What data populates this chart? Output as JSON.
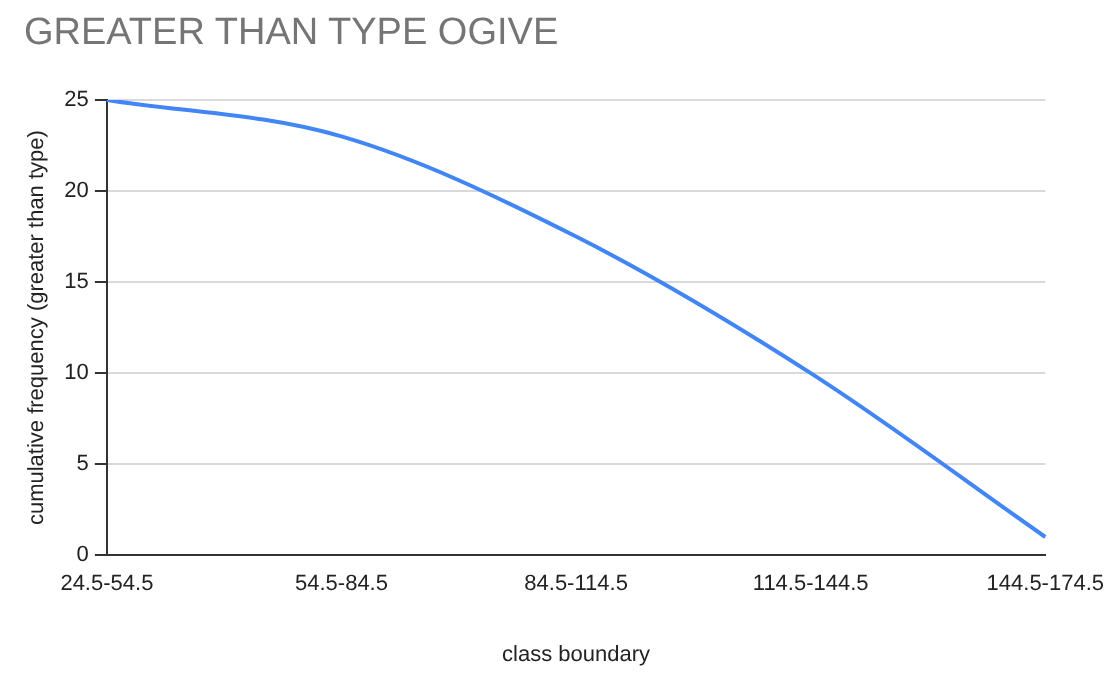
{
  "chart_data": {
    "type": "line",
    "title": "GREATER THAN TYPE OGIVE",
    "xlabel": "class boundary",
    "ylabel": "cumulative frequency (greater than type)",
    "categories": [
      "24.5-54.5",
      "54.5-84.5",
      "84.5-114.5",
      "114.5-144.5",
      "144.5-174.5"
    ],
    "series": [
      {
        "color": "#4285f4",
        "values": [
          25,
          23,
          17.5,
          10,
          1
        ]
      }
    ],
    "ylim": [
      0,
      25
    ],
    "yticks": [
      0,
      5,
      10,
      15,
      20,
      25
    ],
    "grid": "y",
    "legend": false,
    "marker": "none",
    "line_style": "solid"
  }
}
